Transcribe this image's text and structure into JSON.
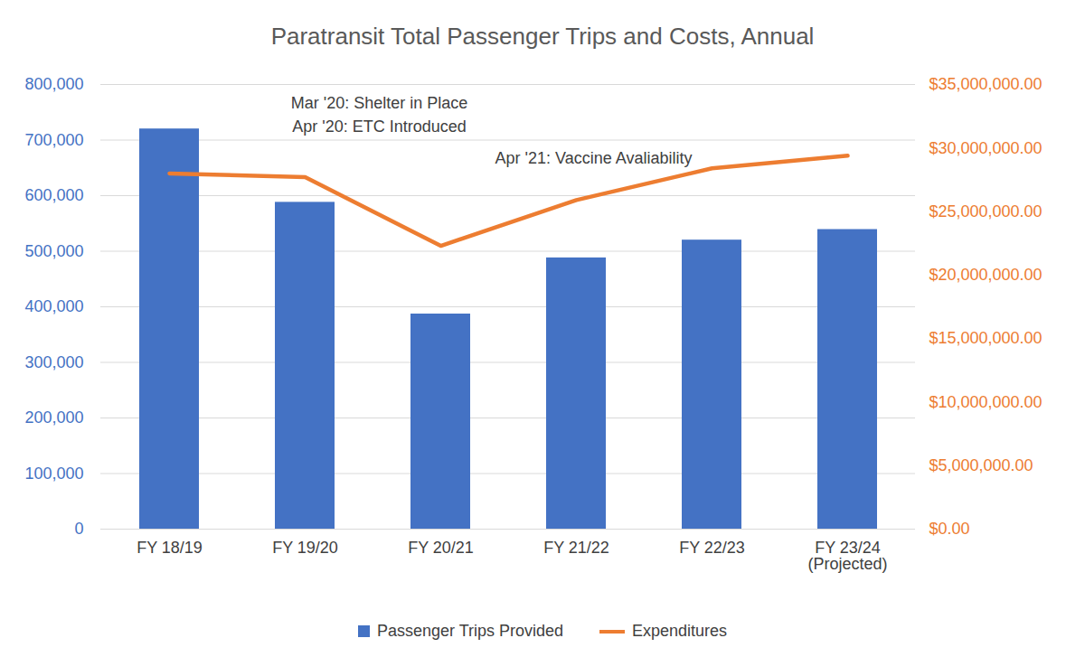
{
  "chart_data": {
    "type": "bar",
    "title": "Paratransit Total Passenger Trips and Costs, Annual",
    "categories": [
      "FY 18/19",
      "FY 19/20",
      "FY 20/21",
      "FY 21/22",
      "FY 22/23",
      "FY 23/24\n(Projected)"
    ],
    "series": [
      {
        "name": "Passenger Trips Provided",
        "type": "bar",
        "color": "#4472C4",
        "values": [
          720000,
          588000,
          387000,
          488000,
          520000,
          539000
        ]
      },
      {
        "name": "Expenditures",
        "type": "line",
        "axis": "y2",
        "color": "#ED7D31",
        "values": [
          28000000,
          27700000,
          22300000,
          25900000,
          28400000,
          29400000
        ]
      }
    ],
    "ylim": [
      0,
      800000
    ],
    "yticks": [
      0,
      {
        "value": 100000,
        "label": "100,000"
      },
      {
        "value": 200000,
        "label": "200,000"
      },
      {
        "value": 300000,
        "label": "300,000"
      },
      {
        "value": 400000,
        "label": "400,000"
      },
      {
        "value": 500000,
        "label": "500,000"
      },
      {
        "value": 600000,
        "label": "600,000"
      },
      {
        "value": 700000,
        "label": "700,000"
      },
      {
        "value": 800000,
        "label": "800,000"
      }
    ],
    "y2lim": [
      0,
      35000000
    ],
    "y2ticks": [
      {
        "value": 0,
        "label": "$0.00"
      },
      {
        "value": 5000000,
        "label": "$5,000,000.00"
      },
      {
        "value": 10000000,
        "label": "$10,000,000.00"
      },
      {
        "value": 15000000,
        "label": "$15,000,000.00"
      },
      {
        "value": 20000000,
        "label": "$20,000,000.00"
      },
      {
        "value": 25000000,
        "label": "$25,000,000.00"
      },
      {
        "value": 30000000,
        "label": "$30,000,000.00"
      },
      {
        "value": 35000000,
        "label": "$35,000,000.00"
      }
    ],
    "grid": true,
    "legend": "bottom",
    "annotations": [
      "Mar '20: Shelter in Place",
      "Apr '20: ETC Introduced",
      "Apr '21: Vaccine Avaliability"
    ]
  }
}
